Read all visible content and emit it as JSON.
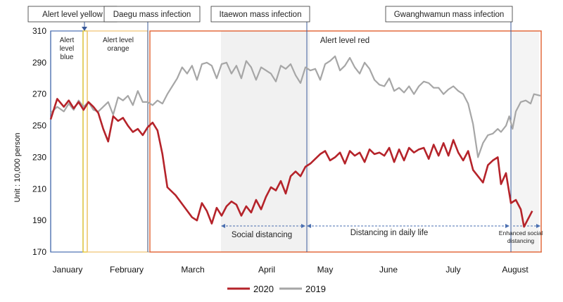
{
  "chart_data": {
    "type": "line",
    "ylabel": "Unit : 10,000 person",
    "ylim": [
      170,
      310
    ],
    "yticks": [
      170,
      190,
      210,
      230,
      250,
      270,
      290,
      310
    ],
    "months": [
      "January",
      "February",
      "March",
      "April",
      "May",
      "June",
      "July",
      "August"
    ],
    "x_range_days": [
      0,
      230
    ],
    "series": [
      {
        "name": "2020",
        "color": "#b5232a",
        "points": [
          [
            0,
            254
          ],
          [
            4,
            267
          ],
          [
            8,
            262
          ],
          [
            11,
            266
          ],
          [
            14,
            261
          ],
          [
            17,
            265
          ],
          [
            20,
            260
          ],
          [
            23,
            265
          ],
          [
            26,
            262
          ],
          [
            29,
            258
          ],
          [
            32,
            248
          ],
          [
            35,
            240
          ],
          [
            38,
            256
          ],
          [
            41,
            253
          ],
          [
            44,
            255
          ],
          [
            47,
            250
          ],
          [
            50,
            246
          ],
          [
            53,
            248
          ],
          [
            56,
            244
          ],
          [
            59,
            249
          ],
          [
            62,
            252
          ],
          [
            65,
            247
          ],
          [
            68,
            232
          ],
          [
            71,
            211
          ],
          [
            76,
            206
          ],
          [
            81,
            199
          ],
          [
            86,
            192
          ],
          [
            89,
            190
          ],
          [
            92,
            201
          ],
          [
            95,
            196
          ],
          [
            98,
            188
          ],
          [
            101,
            198
          ],
          [
            104,
            193
          ],
          [
            107,
            199
          ],
          [
            110,
            202
          ],
          [
            113,
            200
          ],
          [
            116,
            193
          ],
          [
            119,
            199
          ],
          [
            122,
            195
          ],
          [
            125,
            203
          ],
          [
            128,
            197
          ],
          [
            131,
            205
          ],
          [
            134,
            211
          ],
          [
            137,
            209
          ],
          [
            140,
            215
          ],
          [
            143,
            207
          ],
          [
            146,
            218
          ],
          [
            149,
            221
          ],
          [
            152,
            218
          ],
          [
            155,
            224
          ],
          [
            158,
            226
          ],
          [
            161,
            229
          ],
          [
            164,
            232
          ],
          [
            167,
            234
          ],
          [
            170,
            228
          ],
          [
            173,
            230
          ],
          [
            176,
            233
          ],
          [
            179,
            226
          ],
          [
            182,
            234
          ],
          [
            185,
            231
          ],
          [
            188,
            233
          ],
          [
            191,
            227
          ],
          [
            194,
            235
          ],
          [
            197,
            232
          ],
          [
            200,
            233
          ],
          [
            203,
            231
          ],
          [
            206,
            236
          ],
          [
            209,
            227
          ],
          [
            212,
            235
          ],
          [
            215,
            228
          ],
          [
            218,
            236
          ],
          [
            221,
            233
          ],
          [
            224,
            235
          ],
          [
            227,
            236
          ],
          [
            230,
            229
          ],
          [
            233,
            238
          ],
          [
            236,
            231
          ],
          [
            239,
            239
          ],
          [
            242,
            231
          ],
          [
            245,
            241
          ],
          [
            248,
            233
          ],
          [
            251,
            228
          ],
          [
            254,
            234
          ],
          [
            257,
            222
          ],
          [
            260,
            218
          ],
          [
            263,
            214
          ],
          [
            266,
            225
          ],
          [
            269,
            228
          ],
          [
            272,
            230
          ],
          [
            274,
            213
          ],
          [
            277,
            220
          ],
          [
            280,
            201
          ],
          [
            283,
            203
          ],
          [
            286,
            197
          ],
          [
            288,
            186
          ],
          [
            290,
            190
          ],
          [
            293,
            196
          ]
        ]
      },
      {
        "name": "2019",
        "color": "#a6a6a6",
        "points": [
          [
            0,
            258
          ],
          [
            4,
            262
          ],
          [
            8,
            259
          ],
          [
            11,
            264
          ],
          [
            14,
            260
          ],
          [
            17,
            266
          ],
          [
            20,
            262
          ],
          [
            23,
            265
          ],
          [
            26,
            260
          ],
          [
            29,
            259
          ],
          [
            32,
            262
          ],
          [
            35,
            265
          ],
          [
            38,
            257
          ],
          [
            41,
            268
          ],
          [
            44,
            266
          ],
          [
            47,
            269
          ],
          [
            50,
            263
          ],
          [
            53,
            272
          ],
          [
            56,
            265
          ],
          [
            59,
            265
          ],
          [
            62,
            263
          ],
          [
            65,
            266
          ],
          [
            68,
            264
          ],
          [
            71,
            270
          ],
          [
            74,
            275
          ],
          [
            77,
            280
          ],
          [
            80,
            287
          ],
          [
            83,
            283
          ],
          [
            86,
            288
          ],
          [
            89,
            279
          ],
          [
            92,
            289
          ],
          [
            95,
            290
          ],
          [
            98,
            288
          ],
          [
            101,
            280
          ],
          [
            104,
            289
          ],
          [
            107,
            290
          ],
          [
            110,
            283
          ],
          [
            113,
            288
          ],
          [
            116,
            280
          ],
          [
            119,
            291
          ],
          [
            122,
            287
          ],
          [
            125,
            279
          ],
          [
            128,
            287
          ],
          [
            131,
            285
          ],
          [
            134,
            283
          ],
          [
            137,
            278
          ],
          [
            140,
            288
          ],
          [
            143,
            286
          ],
          [
            146,
            289
          ],
          [
            149,
            282
          ],
          [
            152,
            277
          ],
          [
            155,
            287
          ],
          [
            158,
            285
          ],
          [
            161,
            286
          ],
          [
            164,
            279
          ],
          [
            167,
            289
          ],
          [
            170,
            291
          ],
          [
            173,
            294
          ],
          [
            176,
            285
          ],
          [
            179,
            288
          ],
          [
            182,
            293
          ],
          [
            185,
            287
          ],
          [
            188,
            283
          ],
          [
            191,
            290
          ],
          [
            194,
            286
          ],
          [
            197,
            279
          ],
          [
            200,
            276
          ],
          [
            203,
            275
          ],
          [
            206,
            280
          ],
          [
            209,
            272
          ],
          [
            212,
            274
          ],
          [
            215,
            271
          ],
          [
            218,
            275
          ],
          [
            221,
            270
          ],
          [
            224,
            275
          ],
          [
            227,
            278
          ],
          [
            230,
            277
          ],
          [
            233,
            274
          ],
          [
            236,
            274
          ],
          [
            239,
            270
          ],
          [
            242,
            273
          ],
          [
            245,
            275
          ],
          [
            248,
            272
          ],
          [
            251,
            270
          ],
          [
            254,
            264
          ],
          [
            257,
            251
          ],
          [
            260,
            230
          ],
          [
            263,
            239
          ],
          [
            266,
            244
          ],
          [
            269,
            245
          ],
          [
            272,
            248
          ],
          [
            274,
            246
          ],
          [
            277,
            250
          ],
          [
            279,
            256
          ],
          [
            281,
            248
          ],
          [
            283,
            259
          ],
          [
            286,
            265
          ],
          [
            289,
            266
          ],
          [
            292,
            264
          ],
          [
            294,
            270
          ],
          [
            298,
            269
          ]
        ]
      }
    ],
    "annotations": {
      "top_labels": [
        "Alert level yellow",
        "Daegu mass infection",
        "Itaewon mass infection",
        "Gwanghwamun mass infection"
      ],
      "alert_blue": [
        "Alert",
        "level",
        "blue"
      ],
      "alert_orange": [
        "Alert level",
        "orange"
      ],
      "alert_red": "Alert level red",
      "social_distancing": "Social distancing",
      "distancing_daily": "Distancing in daily life",
      "enhanced": [
        "Enhanced social",
        "distancing"
      ]
    },
    "legend": {
      "position": "bottom-center",
      "entries": [
        "2020",
        "2019"
      ]
    }
  }
}
